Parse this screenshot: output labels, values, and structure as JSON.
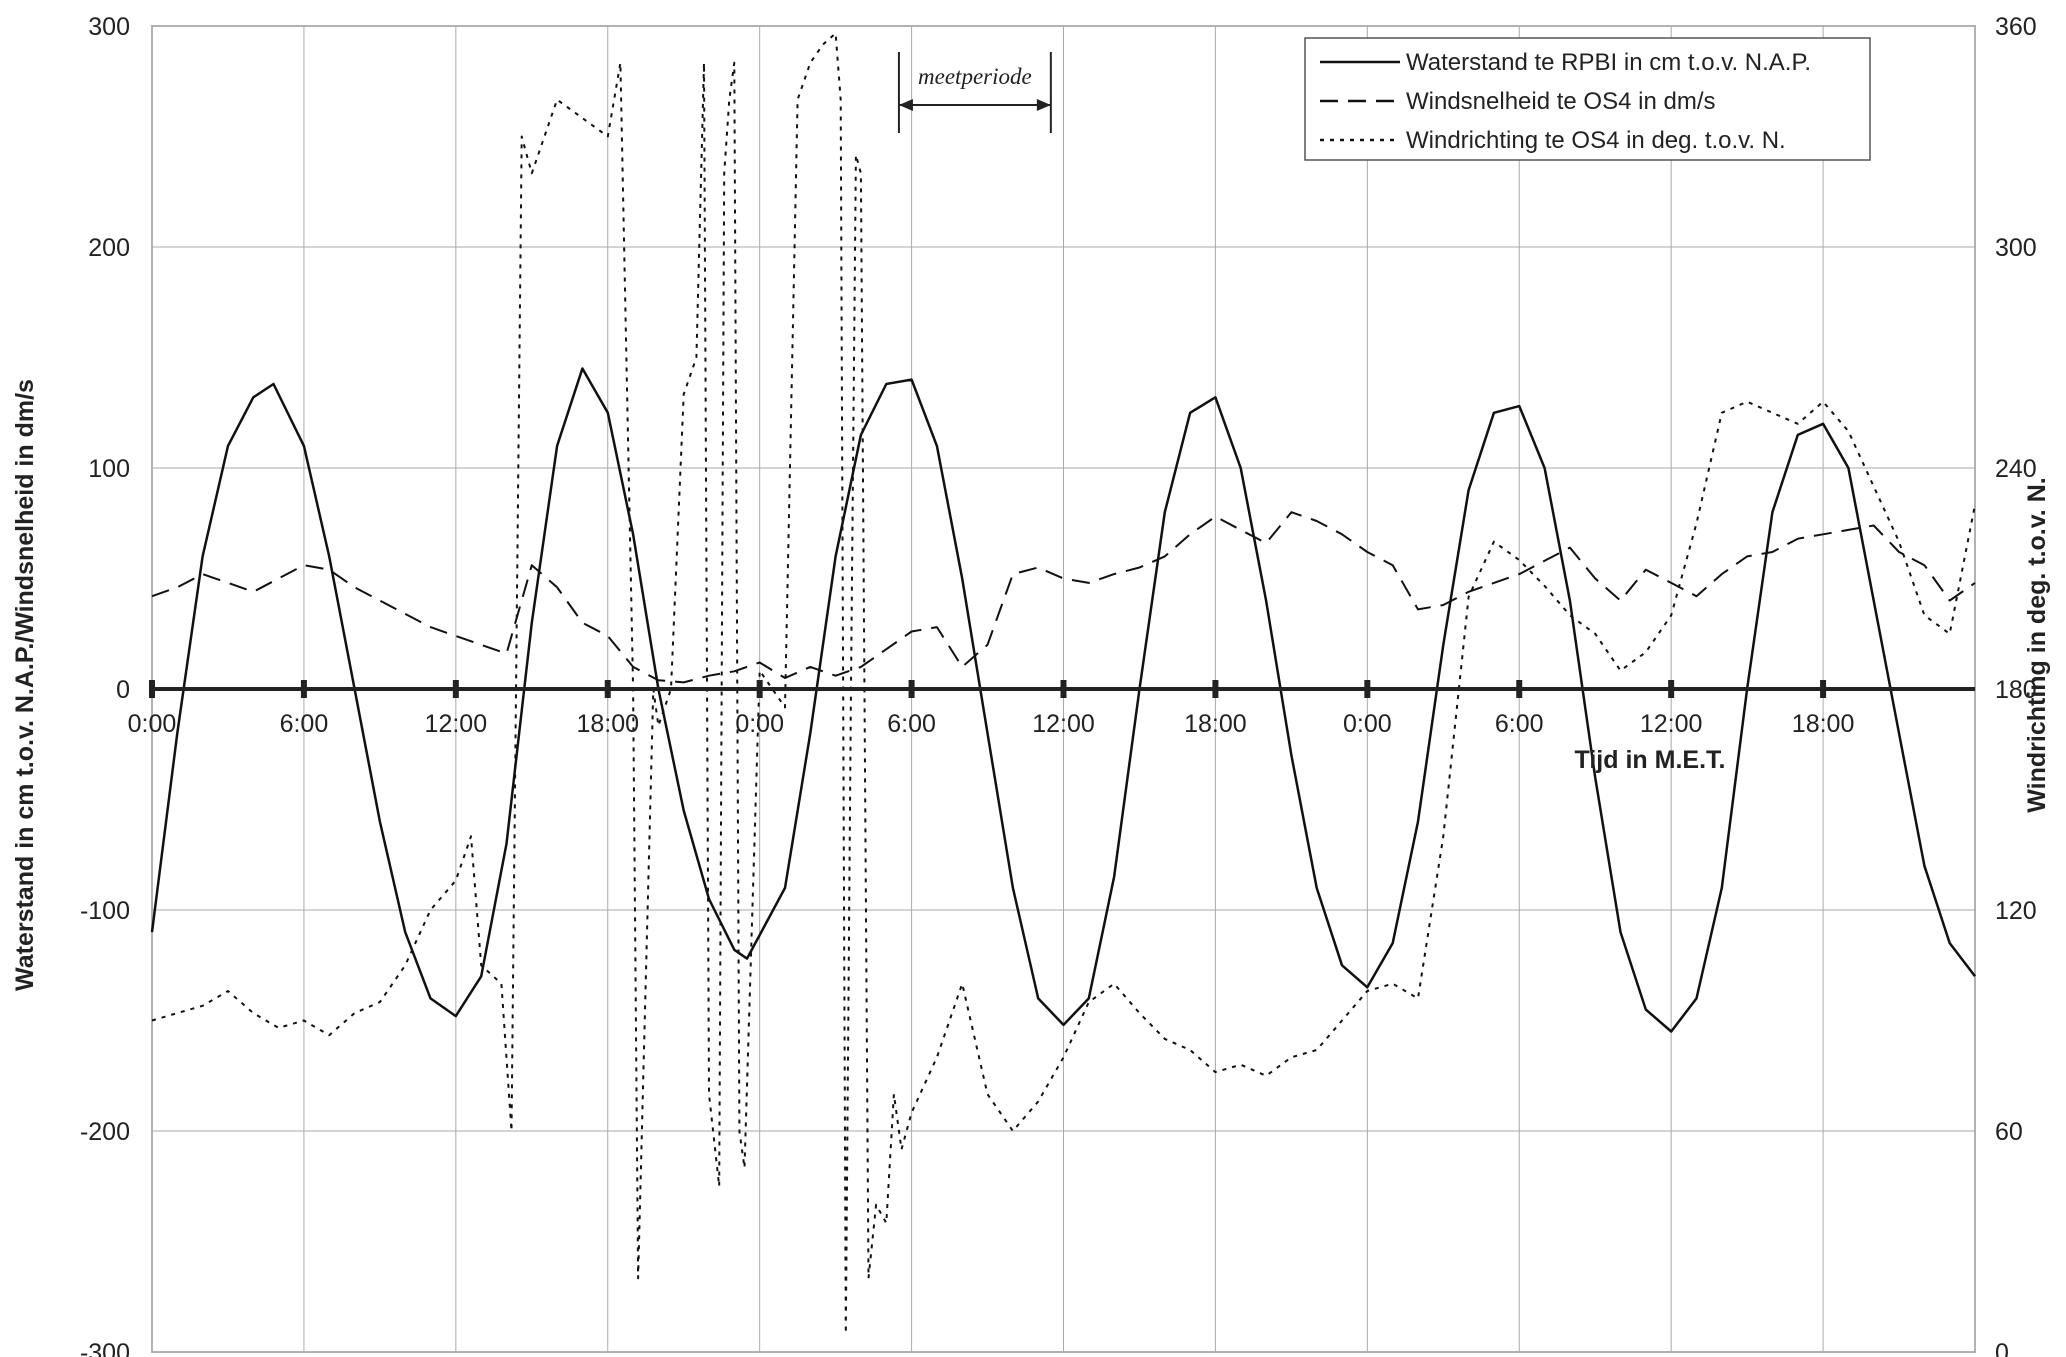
{
  "chart_data": {
    "type": "line",
    "xlabel": "Tijd in M.E.T.",
    "ylabel": "Waterstand in cm t.o.v. N.A.P./Windsnelheid in dm/s",
    "y2label": "Windrichting in deg. t.o.v. N.",
    "ylim": [
      -300,
      300
    ],
    "y2lim": [
      0,
      360
    ],
    "xlim": [
      0,
      72
    ],
    "x_unit": "hours",
    "yticks": [
      "300",
      "200",
      "100",
      "0",
      "-100",
      "-200",
      "-300"
    ],
    "y2ticks": [
      "360",
      "300",
      "240",
      "180",
      "120",
      "60",
      "0"
    ],
    "xticks": [
      "0:00",
      "6:00",
      "12:00",
      "18:00",
      "0:00",
      "6:00",
      "12:00",
      "18:00",
      "0:00",
      "6:00",
      "12:00",
      "18:00"
    ],
    "grid": true,
    "legend_position": "top-right",
    "annotation": {
      "text": "meetperiode",
      "x_start": 29.5,
      "x_end": 35.5
    },
    "series": [
      {
        "name": "Waterstand te RPBI in cm t.o.v. N.A.P.",
        "axis": "left",
        "style": "solid",
        "x": [
          0,
          1,
          2,
          3,
          4,
          4.8,
          6,
          7,
          8,
          9,
          10,
          11,
          12,
          13,
          14,
          15,
          16,
          17,
          18,
          19,
          20,
          21,
          22,
          23,
          23.5,
          25,
          26,
          27,
          28,
          29,
          30,
          31,
          32,
          33,
          34,
          35,
          36,
          37,
          38,
          39,
          40,
          41,
          42,
          43,
          44,
          45,
          46,
          47,
          48,
          49,
          50,
          51,
          52,
          53,
          54,
          55,
          56,
          57,
          58,
          59,
          60,
          61,
          62,
          63,
          64,
          65,
          66,
          67,
          68,
          69,
          70,
          71,
          72
        ],
        "values": [
          -110,
          -20,
          60,
          110,
          132,
          138,
          110,
          60,
          0,
          -60,
          -110,
          -140,
          -148,
          -130,
          -70,
          30,
          110,
          145,
          125,
          70,
          0,
          -55,
          -95,
          -118,
          -122,
          -90,
          -20,
          60,
          115,
          138,
          140,
          110,
          50,
          -20,
          -90,
          -140,
          -152,
          -140,
          -85,
          0,
          80,
          125,
          132,
          100,
          40,
          -30,
          -90,
          -125,
          -135,
          -115,
          -60,
          20,
          90,
          125,
          128,
          100,
          40,
          -40,
          -110,
          -145,
          -155,
          -140,
          -90,
          0,
          80,
          115,
          120,
          100,
          40,
          -20,
          -80,
          -115,
          -130
        ]
      },
      {
        "name": "Windsnelheid te OS4 in dm/s",
        "axis": "left",
        "style": "dashed",
        "x": [
          0,
          1,
          2,
          3,
          4,
          5,
          6,
          7,
          8,
          9,
          10,
          11,
          12,
          13,
          14,
          15,
          16,
          17,
          18,
          19,
          20,
          21,
          22,
          23,
          24,
          25,
          26,
          27,
          28,
          29,
          30,
          31,
          32,
          33,
          34,
          35,
          36,
          37,
          38,
          39,
          40,
          41,
          42,
          43,
          44,
          45,
          46,
          47,
          48,
          49,
          50,
          51,
          52,
          53,
          54,
          55,
          56,
          57,
          58,
          59,
          60,
          61,
          62,
          63,
          64,
          65,
          66,
          67,
          68,
          69,
          70,
          71,
          72
        ],
        "values": [
          42,
          46,
          52,
          48,
          44,
          50,
          56,
          54,
          46,
          40,
          34,
          28,
          24,
          20,
          16,
          56,
          46,
          30,
          24,
          10,
          4,
          3,
          6,
          8,
          12,
          5,
          10,
          6,
          10,
          18,
          26,
          28,
          10,
          20,
          52,
          55,
          50,
          48,
          52,
          55,
          60,
          70,
          78,
          72,
          66,
          80,
          76,
          70,
          62,
          56,
          36,
          38,
          44,
          48,
          52,
          58,
          64,
          50,
          40,
          54,
          48,
          42,
          52,
          60,
          62,
          68,
          70,
          72,
          74,
          62,
          56,
          40,
          48
        ]
      },
      {
        "name": "Windrichting te OS4 in deg. t.o.v. N.",
        "axis": "right",
        "style": "dotted",
        "x": [
          0,
          1,
          2,
          3,
          4,
          5,
          6,
          7,
          8,
          9,
          10,
          11,
          12,
          12.6,
          13,
          13.8,
          14.2,
          14.6,
          15,
          16,
          17,
          18,
          18.5,
          19,
          19.2,
          19.8,
          20,
          20.5,
          21,
          21.5,
          21.8,
          22,
          22.4,
          22.6,
          22.8,
          23,
          23.2,
          23.4,
          24,
          25,
          25.5,
          26,
          26.5,
          27,
          27.2,
          27.4,
          27.6,
          27.8,
          28,
          28.3,
          28.6,
          29,
          29.3,
          29.6,
          30,
          31,
          32,
          33,
          34,
          35,
          36,
          37,
          38,
          39,
          40,
          41,
          42,
          43,
          44,
          45,
          46,
          47,
          48,
          49,
          50,
          51,
          52,
          53,
          54,
          55,
          56,
          57,
          58,
          59,
          60,
          61,
          62,
          63,
          64,
          65,
          66,
          67,
          68,
          69,
          70,
          71,
          72
        ],
        "values": [
          90,
          92,
          94,
          98,
          92,
          88,
          90,
          86,
          92,
          95,
          105,
          120,
          128,
          140,
          105,
          100,
          60,
          330,
          320,
          340,
          335,
          330,
          350,
          180,
          20,
          180,
          170,
          180,
          260,
          270,
          350,
          70,
          45,
          320,
          340,
          350,
          60,
          50,
          185,
          175,
          340,
          350,
          355,
          358,
          340,
          5,
          175,
          325,
          320,
          20,
          40,
          35,
          70,
          55,
          65,
          80,
          100,
          70,
          60,
          68,
          80,
          95,
          100,
          92,
          85,
          82,
          76,
          78,
          75,
          80,
          82,
          90,
          98,
          100,
          96,
          140,
          205,
          220,
          215,
          208,
          200,
          195,
          185,
          190,
          200,
          225,
          255,
          258,
          255,
          252,
          258,
          250,
          235,
          220,
          200,
          195,
          230
        ]
      }
    ]
  }
}
